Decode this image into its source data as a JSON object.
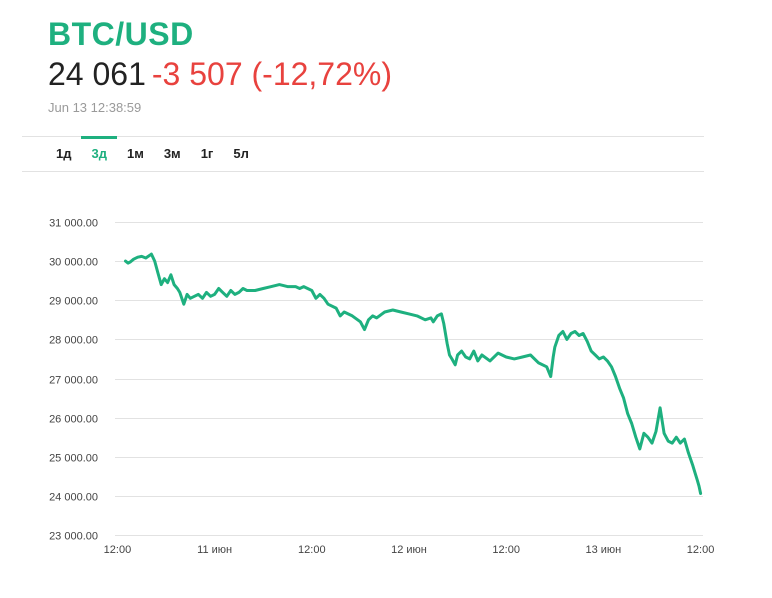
{
  "header": {
    "symbol": "BTC/USD",
    "price": "24 061",
    "change": "-3 507 (-12,72%)",
    "timestamp": "Jun 13 12:38:59"
  },
  "tabs": [
    {
      "label": "1д",
      "active": false
    },
    {
      "label": "3д",
      "active": true
    },
    {
      "label": "1м",
      "active": false
    },
    {
      "label": "3м",
      "active": false
    },
    {
      "label": "1г",
      "active": false
    },
    {
      "label": "5л",
      "active": false
    }
  ],
  "colors": {
    "accent": "#1eb07f",
    "negative": "#e8423e",
    "grid": "#e2e2e2"
  },
  "chart_data": {
    "type": "line",
    "title": "",
    "xlabel": "",
    "ylabel": "",
    "ylim": [
      23000,
      31000
    ],
    "xlim": [
      -0.3,
      72.3
    ],
    "grid": true,
    "y_ticks": [
      {
        "value": 31000,
        "label": "31 000.00"
      },
      {
        "value": 30000,
        "label": "30 000.00"
      },
      {
        "value": 29000,
        "label": "29 000.00"
      },
      {
        "value": 28000,
        "label": "28 000.00"
      },
      {
        "value": 27000,
        "label": "27 000.00"
      },
      {
        "value": 26000,
        "label": "26 000.00"
      },
      {
        "value": 25000,
        "label": "25 000.00"
      },
      {
        "value": 24000,
        "label": "24 000.00"
      },
      {
        "value": 23000,
        "label": "23 000.00"
      }
    ],
    "x_ticks": [
      {
        "value": 0,
        "label": "12:00"
      },
      {
        "value": 12,
        "label": "11 июн"
      },
      {
        "value": 24,
        "label": "12:00"
      },
      {
        "value": 36,
        "label": "12 июн"
      },
      {
        "value": 48,
        "label": "12:00"
      },
      {
        "value": 60,
        "label": "13 июн"
      },
      {
        "value": 72,
        "label": "12:00"
      }
    ],
    "series": [
      {
        "color": "#1eb07f",
        "x": [
          1.0,
          1.3,
          1.6,
          2.0,
          2.5,
          3.0,
          3.5,
          4.0,
          4.2,
          4.6,
          5.0,
          5.4,
          5.8,
          6.2,
          6.6,
          7.0,
          7.4,
          7.7,
          8.2,
          8.6,
          9.0,
          9.5,
          10.0,
          10.5,
          11.0,
          11.5,
          12.0,
          12.5,
          13.0,
          13.5,
          14.0,
          14.5,
          15.0,
          15.5,
          16.0,
          17.0,
          18.0,
          19.0,
          20.0,
          21.0,
          22.0,
          22.5,
          23.0,
          24.0,
          24.5,
          25.0,
          25.5,
          26.0,
          27.0,
          27.5,
          28.0,
          29.0,
          30.0,
          30.5,
          31.0,
          31.5,
          32.0,
          33.0,
          34.0,
          35.0,
          36.0,
          37.0,
          38.0,
          38.7,
          39.0,
          39.5,
          40.0,
          40.3,
          40.7,
          41.0,
          41.3,
          41.7,
          42.0,
          42.5,
          43.0,
          43.5,
          44.0,
          44.5,
          45.0,
          46.0,
          47.0,
          48.0,
          49.0,
          50.0,
          51.0,
          52.0,
          53.0,
          53.5,
          53.8,
          54.0,
          54.5,
          55.0,
          55.5,
          56.0,
          56.5,
          57.0,
          57.5,
          58.0,
          58.5,
          59.0,
          59.5,
          60.0,
          60.5,
          61.0,
          61.5,
          62.0,
          62.5,
          63.0,
          63.5,
          64.0,
          64.5,
          65.0,
          65.5,
          66.0,
          66.5,
          67.0,
          67.5,
          68.0,
          68.5,
          69.0,
          69.5,
          70.0,
          70.5,
          71.0,
          71.3,
          71.6,
          71.8,
          72.0
        ],
        "y": [
          30000,
          29950,
          29980,
          30050,
          30100,
          30120,
          30080,
          30150,
          30180,
          30000,
          29700,
          29400,
          29550,
          29450,
          29650,
          29400,
          29300,
          29200,
          28900,
          29150,
          29050,
          29100,
          29150,
          29050,
          29200,
          29100,
          29150,
          29300,
          29200,
          29100,
          29250,
          29150,
          29200,
          29300,
          29250,
          29250,
          29300,
          29350,
          29400,
          29350,
          29350,
          29300,
          29350,
          29250,
          29050,
          29150,
          29050,
          28900,
          28800,
          28600,
          28700,
          28600,
          28450,
          28250,
          28500,
          28600,
          28550,
          28700,
          28750,
          28700,
          28650,
          28600,
          28500,
          28550,
          28450,
          28600,
          28650,
          28400,
          27900,
          27600,
          27500,
          27350,
          27600,
          27700,
          27550,
          27500,
          27700,
          27450,
          27600,
          27450,
          27650,
          27550,
          27500,
          27550,
          27600,
          27400,
          27300,
          27050,
          27550,
          27800,
          28100,
          28200,
          28000,
          28150,
          28200,
          28100,
          28150,
          27950,
          27700,
          27600,
          27500,
          27550,
          27450,
          27300,
          27050,
          26750,
          26500,
          26100,
          25850,
          25500,
          25200,
          25600,
          25500,
          25350,
          25650,
          26250,
          25600,
          25400,
          25350,
          25500,
          25350,
          25450,
          25100,
          24800,
          24600,
          24400,
          24250,
          24061
        ]
      }
    ]
  }
}
